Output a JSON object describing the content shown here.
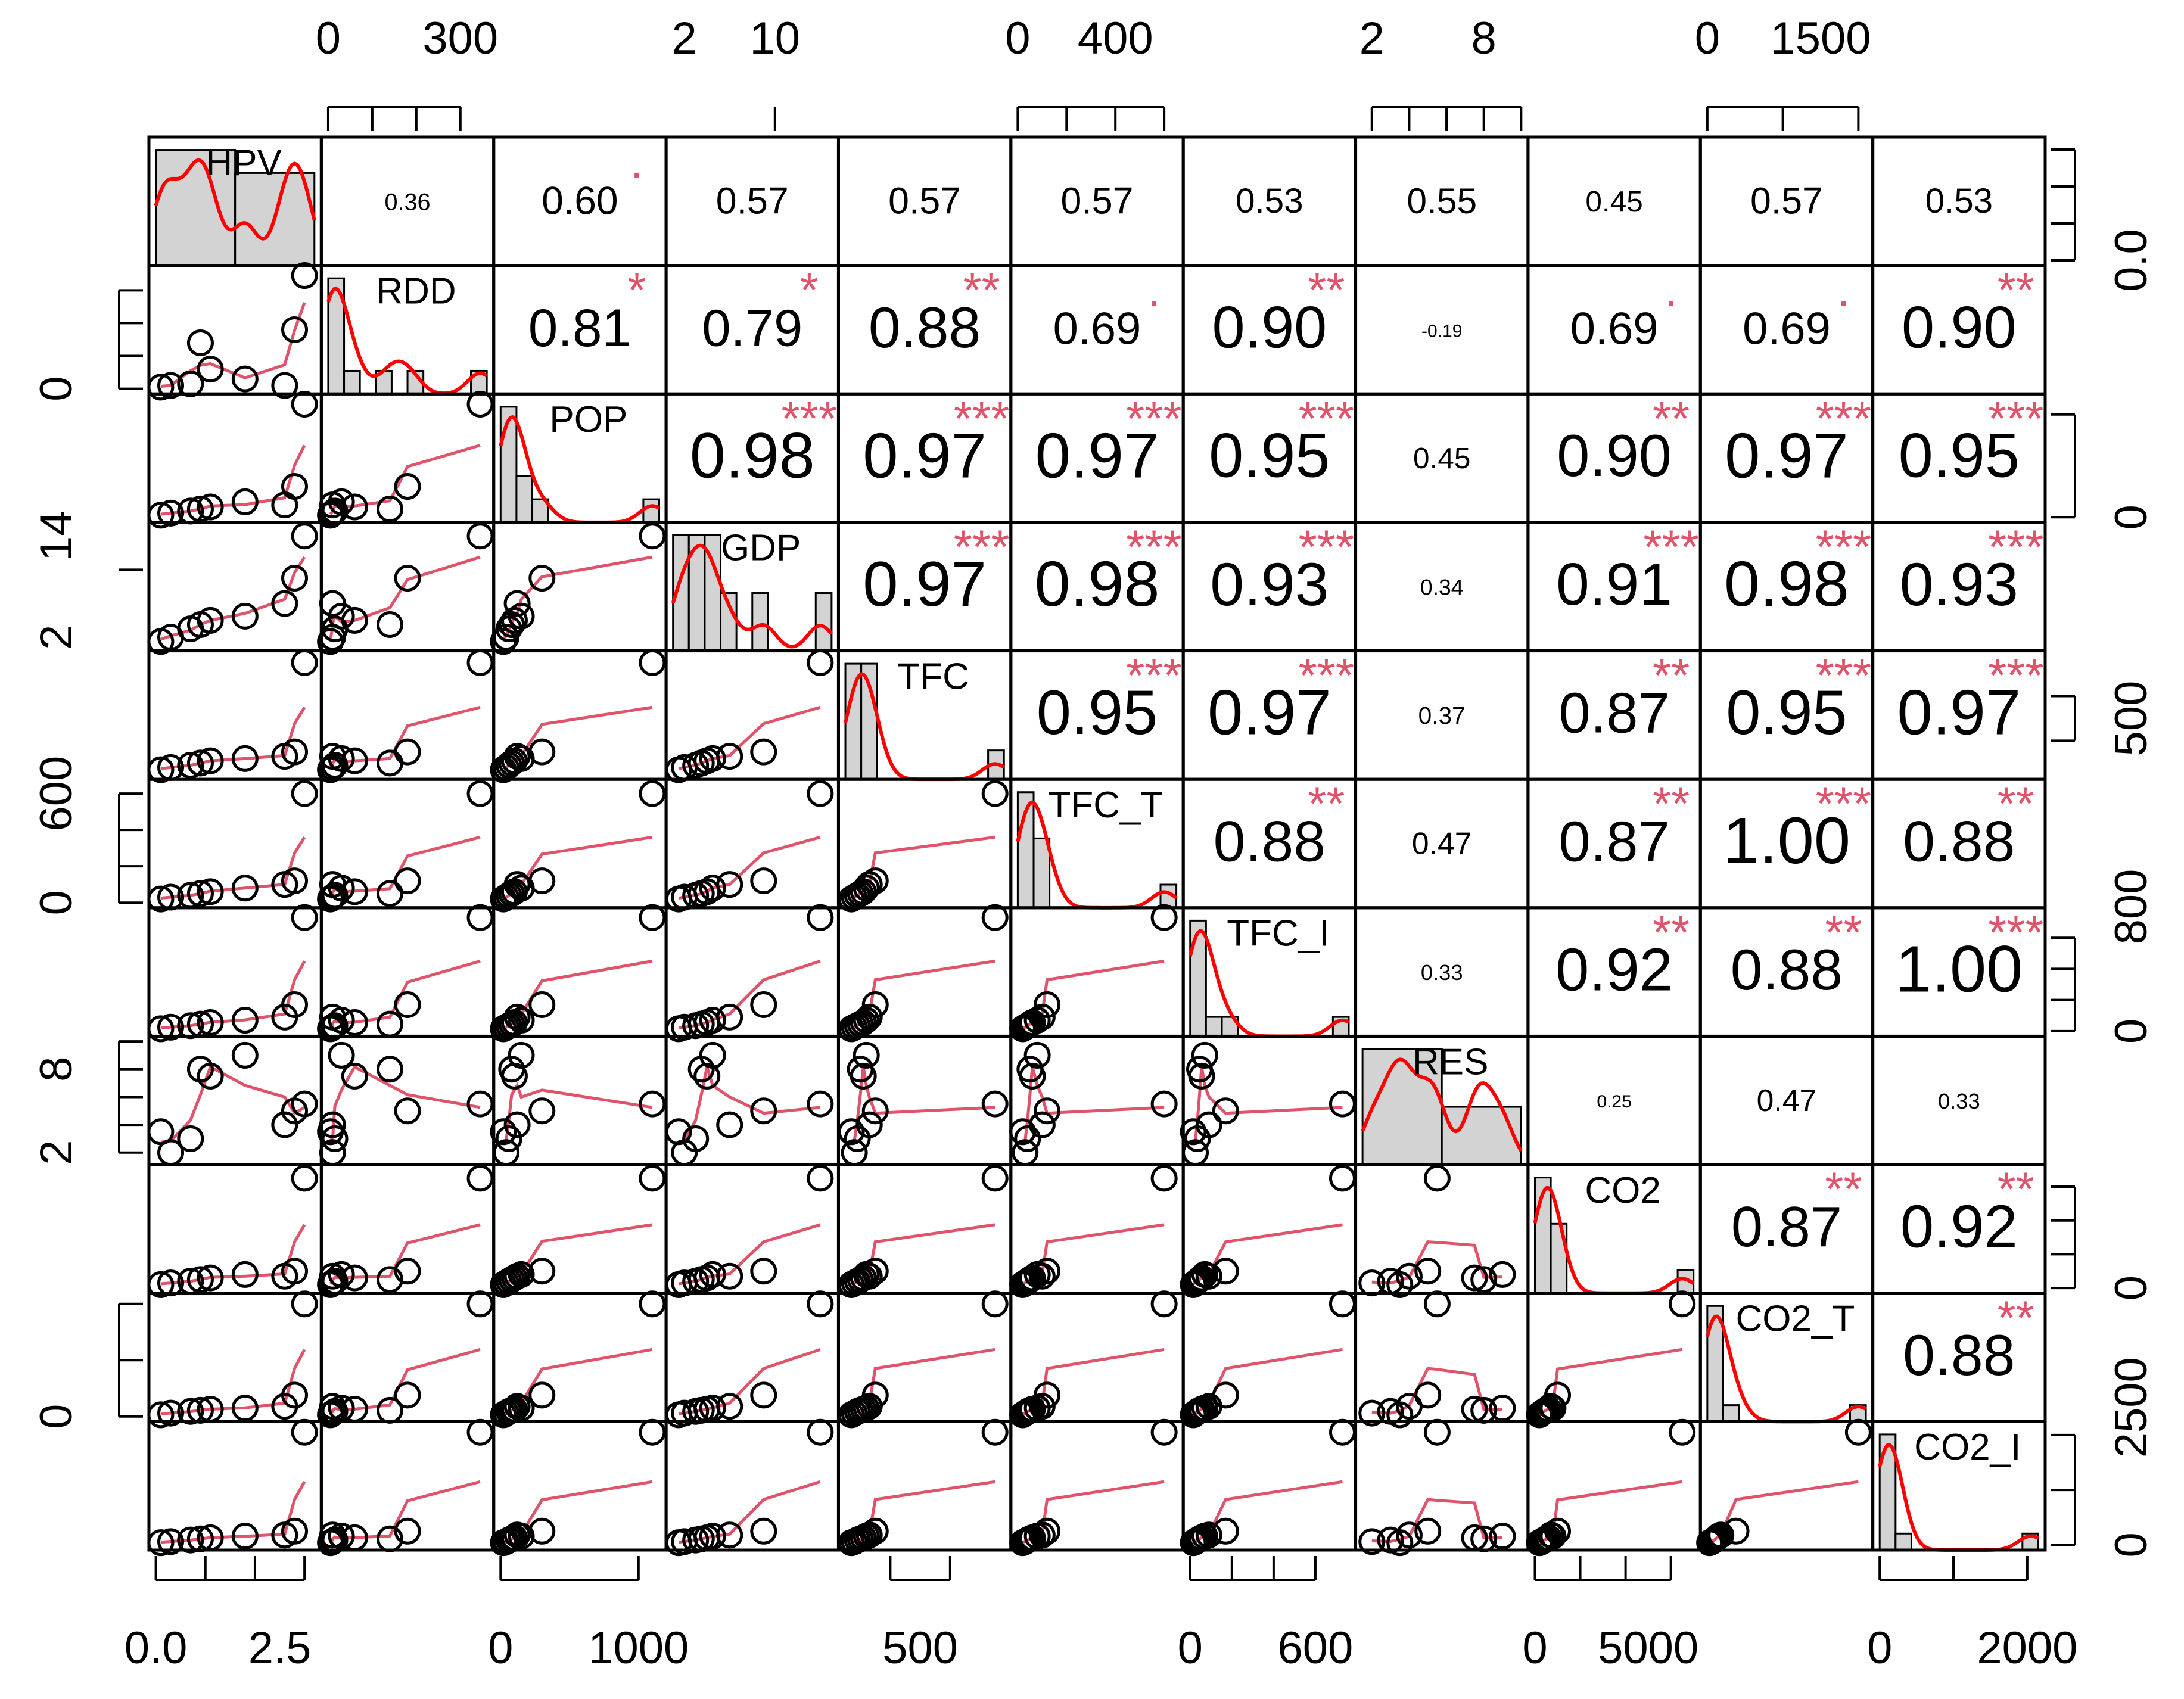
{
  "chart_data": {
    "type": "scatter",
    "title": "",
    "variables": [
      "HPV",
      "RDD",
      "POP",
      "GDP",
      "TFC",
      "TFC_T",
      "TFC_I",
      "RES",
      "CO2",
      "CO2_T",
      "CO2_I"
    ],
    "ranges": {
      "HPV": [
        0,
        3.2
      ],
      "RDD": [
        0,
        360
      ],
      "POP": [
        0,
        1150
      ],
      "GDP": [
        1,
        15
      ],
      "TFC": [
        250,
        780
      ],
      "TFC_T": [
        0,
        650
      ],
      "TFC_I": [
        0,
        760
      ],
      "RES": [
        1.5,
        10
      ],
      "CO2": [
        0,
        7000
      ],
      "CO2_T": [
        0,
        2100
      ],
      "CO2_I": [
        0,
        2150
      ]
    },
    "observations": [
      {
        "HPV": 0.1,
        "RDD": 5,
        "POP": 20,
        "GDP": 1.5,
        "TFC": 270,
        "TFC_T": 20,
        "TFC_I": 15,
        "RES": 3.5,
        "CO2": 200,
        "CO2_T": 30,
        "CO2_I": 40
      },
      {
        "HPV": 0.3,
        "RDD": 10,
        "POP": 40,
        "GDP": 2.0,
        "TFC": 280,
        "TFC_T": 30,
        "TFC_I": 25,
        "RES": 2.0,
        "CO2": 300,
        "CO2_T": 60,
        "CO2_I": 60
      },
      {
        "HPV": 0.7,
        "RDD": 15,
        "POP": 60,
        "GDP": 3.0,
        "TFC": 290,
        "TFC_T": 40,
        "TFC_I": 35,
        "RES": 3.0,
        "CO2": 400,
        "CO2_T": 90,
        "CO2_I": 90
      },
      {
        "HPV": 0.9,
        "RDD": 140,
        "POP": 80,
        "GDP": 3.5,
        "TFC": 300,
        "TFC_T": 50,
        "TFC_I": 45,
        "RES": 8.0,
        "CO2": 500,
        "CO2_T": 110,
        "CO2_I": 110
      },
      {
        "HPV": 1.1,
        "RDD": 60,
        "POP": 100,
        "GDP": 4.0,
        "TFC": 310,
        "TFC_T": 60,
        "TFC_I": 55,
        "RES": 7.5,
        "CO2": 600,
        "CO2_T": 130,
        "CO2_I": 130
      },
      {
        "HPV": 1.8,
        "RDD": 30,
        "POP": 150,
        "GDP": 4.5,
        "TFC": 320,
        "TFC_T": 80,
        "TFC_I": 70,
        "RES": 9.0,
        "CO2": 800,
        "CO2_T": 150,
        "CO2_I": 160
      },
      {
        "HPV": 2.6,
        "RDD": 10,
        "POP": 120,
        "GDP": 6.0,
        "TFC": 330,
        "TFC_T": 100,
        "TFC_I": 90,
        "RES": 4.0,
        "CO2": 700,
        "CO2_T": 180,
        "CO2_I": 180
      },
      {
        "HPV": 2.8,
        "RDD": 180,
        "POP": 300,
        "GDP": 9.0,
        "TFC": 350,
        "TFC_T": 120,
        "TFC_I": 170,
        "RES": 5.0,
        "CO2": 1000,
        "CO2_T": 380,
        "CO2_I": 250
      },
      {
        "HPV": 3.0,
        "RDD": 345,
        "POP": 1100,
        "GDP": 14.0,
        "TFC": 750,
        "TFC_T": 600,
        "TFC_I": 730,
        "RES": 5.5,
        "CO2": 6500,
        "CO2_T": 2000,
        "CO2_I": 2050
      }
    ],
    "correlations": [
      {
        "row": "HPV",
        "col": "RDD",
        "r": "0.36",
        "stars": ""
      },
      {
        "row": "HPV",
        "col": "POP",
        "r": "0.60",
        "stars": "."
      },
      {
        "row": "HPV",
        "col": "GDP",
        "r": "0.57",
        "stars": ""
      },
      {
        "row": "HPV",
        "col": "TFC",
        "r": "0.57",
        "stars": ""
      },
      {
        "row": "HPV",
        "col": "TFC_T",
        "r": "0.57",
        "stars": ""
      },
      {
        "row": "HPV",
        "col": "TFC_I",
        "r": "0.53",
        "stars": ""
      },
      {
        "row": "HPV",
        "col": "RES",
        "r": "0.55",
        "stars": ""
      },
      {
        "row": "HPV",
        "col": "CO2",
        "r": "0.45",
        "stars": ""
      },
      {
        "row": "HPV",
        "col": "CO2_T",
        "r": "0.57",
        "stars": ""
      },
      {
        "row": "HPV",
        "col": "CO2_I",
        "r": "0.53",
        "stars": ""
      },
      {
        "row": "RDD",
        "col": "POP",
        "r": "0.81",
        "stars": "*"
      },
      {
        "row": "RDD",
        "col": "GDP",
        "r": "0.79",
        "stars": "*"
      },
      {
        "row": "RDD",
        "col": "TFC",
        "r": "0.88",
        "stars": "**"
      },
      {
        "row": "RDD",
        "col": "TFC_T",
        "r": "0.69",
        "stars": "."
      },
      {
        "row": "RDD",
        "col": "TFC_I",
        "r": "0.90",
        "stars": "**"
      },
      {
        "row": "RDD",
        "col": "RES",
        "r": "-0.19",
        "stars": ""
      },
      {
        "row": "RDD",
        "col": "CO2",
        "r": "0.69",
        "stars": "."
      },
      {
        "row": "RDD",
        "col": "CO2_T",
        "r": "0.69",
        "stars": "."
      },
      {
        "row": "RDD",
        "col": "CO2_I",
        "r": "0.90",
        "stars": "**"
      },
      {
        "row": "POP",
        "col": "GDP",
        "r": "0.98",
        "stars": "***"
      },
      {
        "row": "POP",
        "col": "TFC",
        "r": "0.97",
        "stars": "***"
      },
      {
        "row": "POP",
        "col": "TFC_T",
        "r": "0.97",
        "stars": "***"
      },
      {
        "row": "POP",
        "col": "TFC_I",
        "r": "0.95",
        "stars": "***"
      },
      {
        "row": "POP",
        "col": "RES",
        "r": "0.45",
        "stars": ""
      },
      {
        "row": "POP",
        "col": "CO2",
        "r": "0.90",
        "stars": "**"
      },
      {
        "row": "POP",
        "col": "CO2_T",
        "r": "0.97",
        "stars": "***"
      },
      {
        "row": "POP",
        "col": "CO2_I",
        "r": "0.95",
        "stars": "***"
      },
      {
        "row": "GDP",
        "col": "TFC",
        "r": "0.97",
        "stars": "***"
      },
      {
        "row": "GDP",
        "col": "TFC_T",
        "r": "0.98",
        "stars": "***"
      },
      {
        "row": "GDP",
        "col": "TFC_I",
        "r": "0.93",
        "stars": "***"
      },
      {
        "row": "GDP",
        "col": "RES",
        "r": "0.34",
        "stars": ""
      },
      {
        "row": "GDP",
        "col": "CO2",
        "r": "0.91",
        "stars": "***"
      },
      {
        "row": "GDP",
        "col": "CO2_T",
        "r": "0.98",
        "stars": "***"
      },
      {
        "row": "GDP",
        "col": "CO2_I",
        "r": "0.93",
        "stars": "***"
      },
      {
        "row": "TFC",
        "col": "TFC_T",
        "r": "0.95",
        "stars": "***"
      },
      {
        "row": "TFC",
        "col": "TFC_I",
        "r": "0.97",
        "stars": "***"
      },
      {
        "row": "TFC",
        "col": "RES",
        "r": "0.37",
        "stars": ""
      },
      {
        "row": "TFC",
        "col": "CO2",
        "r": "0.87",
        "stars": "**"
      },
      {
        "row": "TFC",
        "col": "CO2_T",
        "r": "0.95",
        "stars": "***"
      },
      {
        "row": "TFC",
        "col": "CO2_I",
        "r": "0.97",
        "stars": "***"
      },
      {
        "row": "TFC_T",
        "col": "TFC_I",
        "r": "0.88",
        "stars": "**"
      },
      {
        "row": "TFC_T",
        "col": "RES",
        "r": "0.47",
        "stars": ""
      },
      {
        "row": "TFC_T",
        "col": "CO2",
        "r": "0.87",
        "stars": "**"
      },
      {
        "row": "TFC_T",
        "col": "CO2_T",
        "r": "1.00",
        "stars": "***"
      },
      {
        "row": "TFC_T",
        "col": "CO2_I",
        "r": "0.88",
        "stars": "**"
      },
      {
        "row": "TFC_I",
        "col": "RES",
        "r": "0.33",
        "stars": ""
      },
      {
        "row": "TFC_I",
        "col": "CO2",
        "r": "0.92",
        "stars": "**"
      },
      {
        "row": "TFC_I",
        "col": "CO2_T",
        "r": "0.88",
        "stars": "**"
      },
      {
        "row": "TFC_I",
        "col": "CO2_I",
        "r": "1.00",
        "stars": "***"
      },
      {
        "row": "RES",
        "col": "CO2",
        "r": "0.25",
        "stars": ""
      },
      {
        "row": "RES",
        "col": "CO2_T",
        "r": "0.47",
        "stars": ""
      },
      {
        "row": "RES",
        "col": "CO2_I",
        "r": "0.33",
        "stars": ""
      },
      {
        "row": "CO2",
        "col": "CO2_T",
        "r": "0.87",
        "stars": "**"
      },
      {
        "row": "CO2",
        "col": "CO2_I",
        "r": "0.92",
        "stars": "**"
      },
      {
        "row": "CO2_T",
        "col": "CO2_I",
        "r": "0.88",
        "stars": "**"
      }
    ],
    "axes": {
      "top": [
        {
          "var": "RDD",
          "ticks": [
            "0",
            "300"
          ]
        },
        {
          "var": "GDP",
          "ticks": [
            "2",
            "10"
          ]
        },
        {
          "var": "TFC_T",
          "ticks": [
            "0",
            "400"
          ]
        },
        {
          "var": "RES",
          "ticks": [
            "2",
            "8"
          ]
        },
        {
          "var": "CO2_T",
          "ticks": [
            "0",
            "1500"
          ]
        }
      ],
      "bottom": [
        {
          "var": "HPV",
          "ticks": [
            "0.0",
            "2.5"
          ]
        },
        {
          "var": "POP",
          "ticks": [
            "0",
            "1000"
          ]
        },
        {
          "var": "TFC",
          "ticks": [
            "500"
          ]
        },
        {
          "var": "TFC_I",
          "ticks": [
            "0",
            "600"
          ]
        },
        {
          "var": "CO2",
          "ticks": [
            "0",
            "5000"
          ]
        },
        {
          "var": "CO2_I",
          "ticks": [
            "0",
            "2000"
          ]
        }
      ],
      "left": [
        {
          "var": "RDD",
          "ticks": [
            "0"
          ]
        },
        {
          "var": "GDP",
          "ticks": [
            "2",
            "14"
          ]
        },
        {
          "var": "TFC_T",
          "ticks": [
            "0",
            "600"
          ]
        },
        {
          "var": "RES",
          "ticks": [
            "2",
            "8"
          ]
        },
        {
          "var": "CO2_T",
          "ticks": [
            "0"
          ]
        }
      ],
      "right": [
        {
          "var": "HPV",
          "ticks": [
            "0.0"
          ]
        },
        {
          "var": "POP",
          "ticks": [
            "0"
          ]
        },
        {
          "var": "TFC",
          "ticks": [
            "500"
          ]
        },
        {
          "var": "TFC_I",
          "ticks": [
            "0",
            "800"
          ]
        },
        {
          "var": "CO2",
          "ticks": [
            "0"
          ]
        },
        {
          "var": "CO2_I",
          "ticks": [
            "0",
            "2500"
          ]
        }
      ]
    },
    "colors": {
      "frame": "#000000",
      "points": "#000000",
      "smooth_line": "#DF536B",
      "density_line": "#FF0000",
      "stars": "#DF536B",
      "hist_fill": "#D3D3D3"
    }
  }
}
